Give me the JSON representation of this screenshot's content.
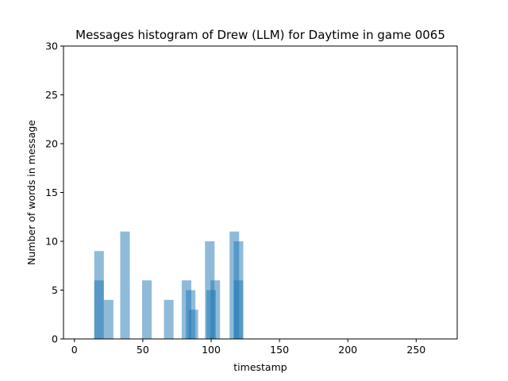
{
  "chart_data": {
    "type": "bar",
    "title": "Messages histogram of Drew (LLM) for Daytime in game 0065",
    "xlabel": "timestamp",
    "ylabel": "Number of words in message",
    "xlim": [
      -8,
      280
    ],
    "ylim": [
      0,
      30
    ],
    "xticks": [
      0,
      50,
      100,
      150,
      200,
      250
    ],
    "yticks": [
      0,
      5,
      10,
      15,
      20,
      25,
      30
    ],
    "bar_width": 7,
    "bar_color": "#1f77b4",
    "bar_opacity": 0.5,
    "grid": false,
    "bars": [
      {
        "x": 18,
        "value": 9
      },
      {
        "x": 18,
        "value": 6
      },
      {
        "x": 25,
        "value": 4
      },
      {
        "x": 37,
        "value": 11
      },
      {
        "x": 53,
        "value": 6
      },
      {
        "x": 69,
        "value": 4
      },
      {
        "x": 82,
        "value": 6
      },
      {
        "x": 85,
        "value": 5
      },
      {
        "x": 87,
        "value": 3
      },
      {
        "x": 99,
        "value": 10
      },
      {
        "x": 100,
        "value": 5
      },
      {
        "x": 103,
        "value": 6
      },
      {
        "x": 117,
        "value": 11
      },
      {
        "x": 120,
        "value": 10
      },
      {
        "x": 120,
        "value": 6
      }
    ]
  }
}
